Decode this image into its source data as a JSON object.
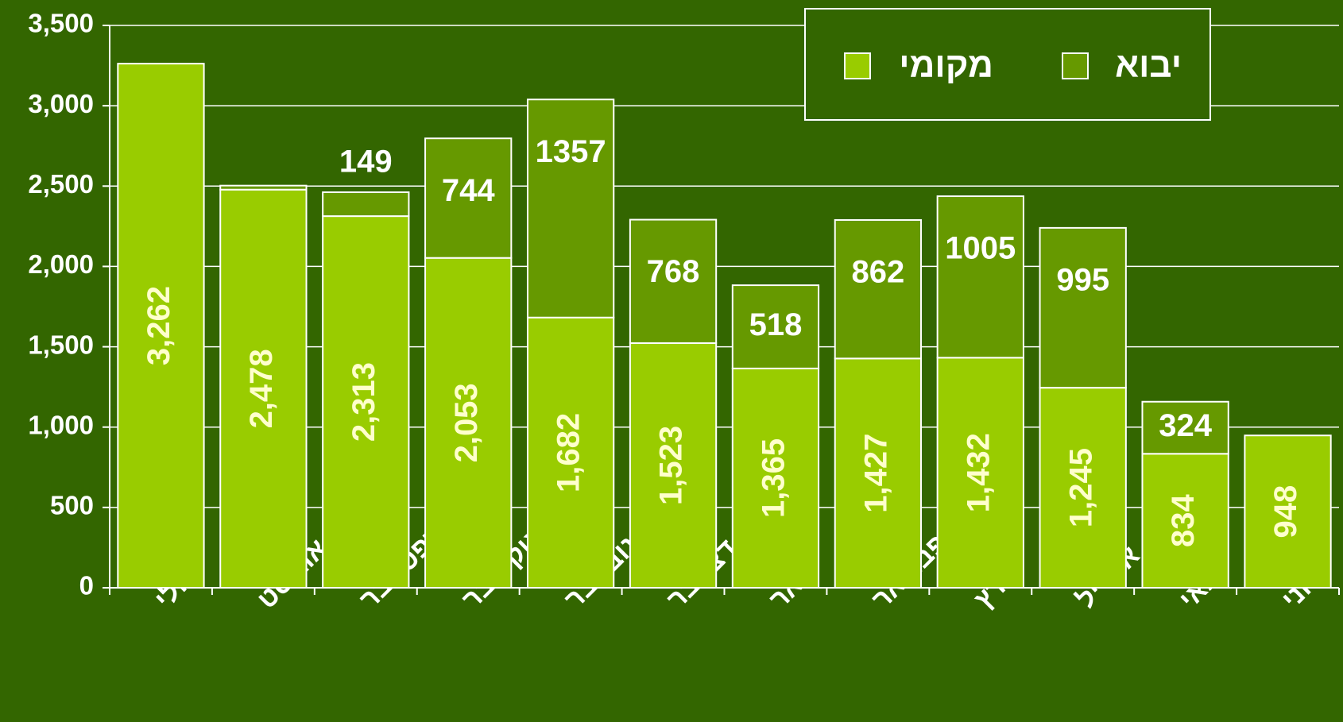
{
  "chart_data": {
    "type": "stacked_bar",
    "categories": [
      "יולי",
      "אוגוסט",
      "ספטמבר",
      "אוקטובר",
      "נובמבר",
      "דצמבר",
      "ינואר",
      "פברואר",
      "מרץ",
      "אפריל",
      "מאי",
      "יוני"
    ],
    "series": [
      {
        "name": "מקומי",
        "color": "#99cc00",
        "values": [
          3262,
          2478,
          2313,
          2053,
          1682,
          1523,
          1365,
          1427,
          1432,
          1245,
          834,
          948
        ],
        "value_labels": [
          "3,262",
          "2,478",
          "2,313",
          "2,053",
          "1,682",
          "1,523",
          "1,365",
          "1,427",
          "1,432",
          "1,245",
          "834",
          "948"
        ]
      },
      {
        "name": "יבוא",
        "color": "#669900",
        "values": [
          null,
          25,
          149,
          744,
          1357,
          768,
          518,
          862,
          1005,
          995,
          324,
          null
        ],
        "value_labels": [
          null,
          null,
          "149",
          "744",
          "1357",
          "768",
          "518",
          "862",
          "1005",
          "995",
          "324",
          null
        ]
      }
    ],
    "ylim": [
      0,
      3500
    ],
    "yticks": [
      0,
      500,
      {
        "value": 1000,
        "label": "1,000"
      },
      {
        "value": 1500,
        "label": "1,500"
      },
      {
        "value": 2000,
        "label": "2,000"
      },
      {
        "value": 2500,
        "label": "2,500"
      },
      {
        "value": 3000,
        "label": "3,000"
      },
      {
        "value": 3500,
        "label": "3,500"
      }
    ],
    "grid": true,
    "legend": "top-right",
    "background": "#336600"
  }
}
